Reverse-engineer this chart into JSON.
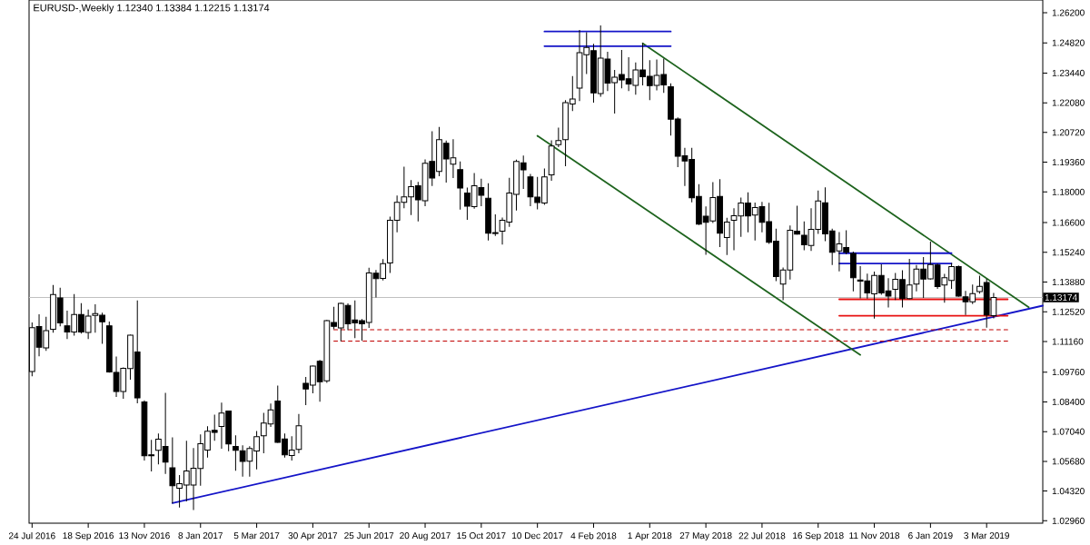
{
  "chart_data": {
    "type": "candlestick",
    "title": "EURUSD-,Weekly 1.12340 1.13384 1.12215 1.13174",
    "x": [
      "2016-07-24",
      "2016-07-31",
      "2016-08-07",
      "2016-08-14",
      "2016-08-21",
      "2016-08-28",
      "2016-09-04",
      "2016-09-11",
      "2016-09-18",
      "2016-09-25",
      "2016-10-02",
      "2016-10-09",
      "2016-10-16",
      "2016-10-23",
      "2016-10-30",
      "2016-11-06",
      "2016-11-13",
      "2016-11-20",
      "2016-11-27",
      "2016-12-04",
      "2016-12-11",
      "2016-12-18",
      "2016-12-25",
      "2017-01-01",
      "2017-01-08",
      "2017-01-15",
      "2017-01-22",
      "2017-01-29",
      "2017-02-05",
      "2017-02-12",
      "2017-02-19",
      "2017-02-26",
      "2017-03-05",
      "2017-03-12",
      "2017-03-19",
      "2017-03-26",
      "2017-04-02",
      "2017-04-09",
      "2017-04-16",
      "2017-04-23",
      "2017-04-30",
      "2017-05-07",
      "2017-05-14",
      "2017-05-21",
      "2017-05-28",
      "2017-06-04",
      "2017-06-11",
      "2017-06-18",
      "2017-06-25",
      "2017-07-02",
      "2017-07-09",
      "2017-07-16",
      "2017-07-23",
      "2017-07-30",
      "2017-08-06",
      "2017-08-13",
      "2017-08-20",
      "2017-08-27",
      "2017-09-03",
      "2017-09-10",
      "2017-09-17",
      "2017-09-24",
      "2017-10-01",
      "2017-10-08",
      "2017-10-15",
      "2017-10-22",
      "2017-10-29",
      "2017-11-05",
      "2017-11-12",
      "2017-11-19",
      "2017-11-26",
      "2017-12-03",
      "2017-12-10",
      "2017-12-17",
      "2017-12-24",
      "2017-12-31",
      "2018-01-07",
      "2018-01-14",
      "2018-01-21",
      "2018-01-28",
      "2018-02-04",
      "2018-02-11",
      "2018-02-18",
      "2018-02-25",
      "2018-03-04",
      "2018-03-11",
      "2018-03-18",
      "2018-03-25",
      "2018-04-01",
      "2018-04-08",
      "2018-04-15",
      "2018-04-22",
      "2018-04-29",
      "2018-05-06",
      "2018-05-13",
      "2018-05-20",
      "2018-05-27",
      "2018-06-03",
      "2018-06-10",
      "2018-06-17",
      "2018-06-24",
      "2018-07-01",
      "2018-07-08",
      "2018-07-15",
      "2018-07-22",
      "2018-07-29",
      "2018-08-05",
      "2018-08-12",
      "2018-08-19",
      "2018-08-26",
      "2018-09-02",
      "2018-09-09",
      "2018-09-16",
      "2018-09-23",
      "2018-09-30",
      "2018-10-07",
      "2018-10-14",
      "2018-10-21",
      "2018-10-28",
      "2018-11-04",
      "2018-11-11",
      "2018-11-18",
      "2018-11-25",
      "2018-12-02",
      "2018-12-09",
      "2018-12-16",
      "2018-12-23",
      "2018-12-30",
      "2019-01-06",
      "2019-01-13",
      "2019-01-20",
      "2019-01-27",
      "2019-02-03",
      "2019-02-10",
      "2019-02-17",
      "2019-02-24",
      "2019-03-03",
      "2019-03-10"
    ],
    "ohlc": [
      [
        1.0979,
        1.1203,
        1.0957,
        1.1179
      ],
      [
        1.1184,
        1.1241,
        1.1048,
        1.109
      ],
      [
        1.1087,
        1.1229,
        1.1073,
        1.1166
      ],
      [
        1.1172,
        1.1374,
        1.1156,
        1.1331
      ],
      [
        1.1315,
        1.1362,
        1.1185,
        1.1201
      ],
      [
        1.1188,
        1.1257,
        1.1127,
        1.116
      ],
      [
        1.116,
        1.1333,
        1.1143,
        1.124
      ],
      [
        1.124,
        1.1291,
        1.1152,
        1.116
      ],
      [
        1.1157,
        1.1262,
        1.1127,
        1.1232
      ],
      [
        1.1235,
        1.1286,
        1.1156,
        1.1244
      ],
      [
        1.1236,
        1.1248,
        1.1106,
        1.1206
      ],
      [
        1.1188,
        1.1207,
        1.0974,
        1.0977
      ],
      [
        1.0975,
        1.1047,
        1.0862,
        1.0887
      ],
      [
        1.0887,
        1.0997,
        1.0854,
        1.0993
      ],
      [
        1.0992,
        1.1147,
        1.0941,
        1.1145
      ],
      [
        1.1068,
        1.1304,
        1.0833,
        1.0858
      ],
      [
        1.084,
        1.0847,
        1.0572,
        1.0593
      ],
      [
        1.0598,
        1.0666,
        1.0522,
        1.0593
      ],
      [
        1.0618,
        1.0695,
        1.0554,
        1.0669
      ],
      [
        1.0636,
        1.0881,
        1.051,
        1.0564
      ],
      [
        1.0538,
        1.0678,
        1.0375,
        1.0456
      ],
      [
        1.0445,
        1.0505,
        1.0357,
        1.0466
      ],
      [
        1.046,
        1.0662,
        1.0385,
        1.0524
      ],
      [
        1.046,
        1.0629,
        1.0345,
        1.0536
      ],
      [
        1.0535,
        1.0691,
        1.0456,
        1.0648
      ],
      [
        1.0619,
        1.0728,
        1.0585,
        1.0706
      ],
      [
        1.071,
        1.0781,
        1.0662,
        1.07
      ],
      [
        1.0727,
        1.0836,
        1.0626,
        1.0789
      ],
      [
        1.0798,
        1.08,
        1.0614,
        1.0647
      ],
      [
        1.0636,
        1.0687,
        1.0525,
        1.0618
      ],
      [
        1.0616,
        1.0641,
        1.0498,
        1.0568
      ],
      [
        1.0569,
        1.0637,
        1.0498,
        1.0627
      ],
      [
        1.0615,
        1.0707,
        1.0531,
        1.0681
      ],
      [
        1.0685,
        1.079,
        1.0605,
        1.0743
      ],
      [
        1.0739,
        1.0832,
        1.0725,
        1.0803
      ],
      [
        1.0844,
        1.0914,
        1.0653,
        1.0655
      ],
      [
        1.067,
        1.0695,
        1.0585,
        1.0598
      ],
      [
        1.0594,
        1.0683,
        1.0572,
        1.0619
      ],
      [
        1.0623,
        1.0785,
        1.0605,
        1.0731
      ],
      [
        1.0925,
        1.0954,
        1.0825,
        1.0899
      ],
      [
        1.0917,
        1.1006,
        1.0879,
        1.1004
      ],
      [
        1.1026,
        1.1032,
        1.0841,
        1.0932
      ],
      [
        1.0936,
        1.1215,
        1.0927,
        1.1211
      ],
      [
        1.1203,
        1.1275,
        1.1172,
        1.1185
      ],
      [
        1.1178,
        1.1293,
        1.1117,
        1.129
      ],
      [
        1.1281,
        1.129,
        1.1168,
        1.1197
      ],
      [
        1.1215,
        1.1304,
        1.1131,
        1.1201
      ],
      [
        1.1211,
        1.1219,
        1.112,
        1.1197
      ],
      [
        1.1203,
        1.1453,
        1.1178,
        1.143
      ],
      [
        1.1428,
        1.1443,
        1.1317,
        1.1404
      ],
      [
        1.1405,
        1.1493,
        1.1395,
        1.1472
      ],
      [
        1.1475,
        1.1687,
        1.143,
        1.1671
      ],
      [
        1.1671,
        1.1784,
        1.1615,
        1.1753
      ],
      [
        1.1753,
        1.1916,
        1.1726,
        1.1778
      ],
      [
        1.1778,
        1.1854,
        1.1694,
        1.1824
      ],
      [
        1.1828,
        1.1846,
        1.1665,
        1.1764
      ],
      [
        1.176,
        1.1949,
        1.1735,
        1.1931
      ],
      [
        1.194,
        1.2078,
        1.1827,
        1.1864
      ],
      [
        1.1894,
        1.2097,
        1.1872,
        1.2039
      ],
      [
        1.2023,
        1.2035,
        1.1843,
        1.1951
      ],
      [
        1.1927,
        1.2041,
        1.1864,
        1.1956
      ],
      [
        1.1902,
        1.194,
        1.1719,
        1.1818
      ],
      [
        1.1795,
        1.182,
        1.1673,
        1.1735
      ],
      [
        1.1733,
        1.1887,
        1.1723,
        1.1828
      ],
      [
        1.182,
        1.1861,
        1.1735,
        1.1785
      ],
      [
        1.1771,
        1.184,
        1.1578,
        1.1611
      ],
      [
        1.1614,
        1.1697,
        1.1599,
        1.161
      ],
      [
        1.1621,
        1.1683,
        1.1559,
        1.1671
      ],
      [
        1.1662,
        1.1865,
        1.164,
        1.1795
      ],
      [
        1.1789,
        1.1948,
        1.1715,
        1.194
      ],
      [
        1.1933,
        1.1966,
        1.1814,
        1.1901
      ],
      [
        1.1869,
        1.1882,
        1.1735,
        1.1777
      ],
      [
        1.1776,
        1.1869,
        1.172,
        1.1752
      ],
      [
        1.1749,
        1.1907,
        1.1741,
        1.1869
      ],
      [
        1.1878,
        1.2036,
        1.1851,
        1.201
      ],
      [
        1.2016,
        1.2094,
        1.2005,
        1.2035
      ],
      [
        1.2039,
        1.222,
        1.1918,
        1.2209
      ],
      [
        1.2202,
        1.233,
        1.217,
        1.2225
      ],
      [
        1.2275,
        1.2541,
        1.2216,
        1.2437
      ],
      [
        1.2428,
        1.253,
        1.2339,
        1.2461
      ],
      [
        1.2446,
        1.2478,
        1.2209,
        1.2253
      ],
      [
        1.225,
        1.2562,
        1.2236,
        1.2412
      ],
      [
        1.2408,
        1.2441,
        1.2261,
        1.2298
      ],
      [
        1.23,
        1.2358,
        1.2159,
        1.2325
      ],
      [
        1.2337,
        1.2449,
        1.2274,
        1.2312
      ],
      [
        1.2318,
        1.2416,
        1.2261,
        1.2294
      ],
      [
        1.2287,
        1.2392,
        1.2245,
        1.2358
      ],
      [
        1.2358,
        1.2481,
        1.2287,
        1.2327
      ],
      [
        1.2329,
        1.2403,
        1.222,
        1.2286
      ],
      [
        1.2287,
        1.2406,
        1.2265,
        1.2333
      ],
      [
        1.2337,
        1.241,
        1.2253,
        1.229
      ],
      [
        1.2281,
        1.2297,
        1.2058,
        1.2133
      ],
      [
        1.2134,
        1.2141,
        1.1914,
        1.1963
      ],
      [
        1.1965,
        1.2002,
        1.1827,
        1.1942
      ],
      [
        1.1949,
        1.2002,
        1.1753,
        1.1773
      ],
      [
        1.178,
        1.1836,
        1.1649,
        1.1653
      ],
      [
        1.1689,
        1.1734,
        1.1513,
        1.1661
      ],
      [
        1.1667,
        1.1845,
        1.1658,
        1.1774
      ],
      [
        1.178,
        1.1858,
        1.1548,
        1.1611
      ],
      [
        1.1592,
        1.1682,
        1.1512,
        1.1662
      ],
      [
        1.1671,
        1.1726,
        1.1533,
        1.1691
      ],
      [
        1.169,
        1.1774,
        1.1595,
        1.1749
      ],
      [
        1.1749,
        1.1798,
        1.1615,
        1.169
      ],
      [
        1.1694,
        1.1752,
        1.1578,
        1.1729
      ],
      [
        1.1733,
        1.1755,
        1.1615,
        1.1661
      ],
      [
        1.1664,
        1.1751,
        1.1562,
        1.157
      ],
      [
        1.1575,
        1.1632,
        1.1392,
        1.1413
      ],
      [
        1.1379,
        1.1454,
        1.1305,
        1.1443
      ],
      [
        1.1443,
        1.1647,
        1.1399,
        1.1625
      ],
      [
        1.1621,
        1.1737,
        1.1605,
        1.1607
      ],
      [
        1.1602,
        1.1665,
        1.1533,
        1.1558
      ],
      [
        1.1555,
        1.1726,
        1.153,
        1.1629
      ],
      [
        1.1629,
        1.1807,
        1.1608,
        1.1759
      ],
      [
        1.1751,
        1.1821,
        1.1575,
        1.1608
      ],
      [
        1.1622,
        1.1632,
        1.1466,
        1.1524
      ],
      [
        1.153,
        1.1617,
        1.1437,
        1.1563
      ],
      [
        1.1546,
        1.1625,
        1.1515,
        1.1524
      ],
      [
        1.1519,
        1.1527,
        1.1345,
        1.1408
      ],
      [
        1.1397,
        1.1461,
        1.1313,
        1.1392
      ],
      [
        1.1393,
        1.1426,
        1.1312,
        1.1338
      ],
      [
        1.1334,
        1.1436,
        1.1221,
        1.1418
      ],
      [
        1.1418,
        1.1469,
        1.133,
        1.1338
      ],
      [
        1.1348,
        1.1406,
        1.1272,
        1.1324
      ],
      [
        1.1355,
        1.143,
        1.1306,
        1.14
      ],
      [
        1.1399,
        1.1442,
        1.1272,
        1.1312
      ],
      [
        1.1312,
        1.1494,
        1.1309,
        1.1374
      ],
      [
        1.1379,
        1.1466,
        1.1345,
        1.1447
      ],
      [
        1.1447,
        1.1502,
        1.1315,
        1.1402
      ],
      [
        1.1403,
        1.1573,
        1.1399,
        1.1468
      ],
      [
        1.1466,
        1.1472,
        1.1357,
        1.1367
      ],
      [
        1.1374,
        1.1425,
        1.1294,
        1.1408
      ],
      [
        1.1395,
        1.1475,
        1.1357,
        1.1459
      ],
      [
        1.1459,
        1.1464,
        1.1321,
        1.1324
      ],
      [
        1.132,
        1.1348,
        1.1237,
        1.1298
      ],
      [
        1.1298,
        1.1377,
        1.1287,
        1.1335
      ],
      [
        1.1344,
        1.1417,
        1.1335,
        1.1368
      ],
      [
        1.1386,
        1.1403,
        1.1179,
        1.1237
      ],
      [
        1.1234,
        1.13384,
        1.12215,
        1.13174
      ]
    ],
    "xlim": [
      "2016-07-21",
      "2019-04-28"
    ],
    "ylim": [
      1.0285,
      1.2678
    ],
    "xticks": [
      {
        "value": "2016-07-24",
        "label": "24 Jul 2016"
      },
      {
        "value": "2016-09-18",
        "label": "18 Sep 2016"
      },
      {
        "value": "2016-11-13",
        "label": "13 Nov 2016"
      },
      {
        "value": "2017-01-08",
        "label": "8 Jan 2017"
      },
      {
        "value": "2017-03-05",
        "label": "5 Mar 2017"
      },
      {
        "value": "2017-04-30",
        "label": "30 Apr 2017"
      },
      {
        "value": "2017-06-25",
        "label": "25 Jun 2017"
      },
      {
        "value": "2017-08-20",
        "label": "20 Aug 2017"
      },
      {
        "value": "2017-10-15",
        "label": "15 Oct 2017"
      },
      {
        "value": "2017-12-10",
        "label": "10 Dec 2017"
      },
      {
        "value": "2018-02-04",
        "label": "4 Feb 2018"
      },
      {
        "value": "2018-04-01",
        "label": "1 Apr 2018"
      },
      {
        "value": "2018-05-27",
        "label": "27 May 2018"
      },
      {
        "value": "2018-07-22",
        "label": "22 Jul 2018"
      },
      {
        "value": "2018-09-16",
        "label": "16 Sep 2018"
      },
      {
        "value": "2018-11-11",
        "label": "11 Nov 2018"
      },
      {
        "value": "2019-01-06",
        "label": "6 Jan 2019"
      },
      {
        "value": "2019-03-03",
        "label": "3 Mar 2019"
      }
    ],
    "yticks": [
      {
        "value": 1.262,
        "label": "1.26200"
      },
      {
        "value": 1.2482,
        "label": "1.24820"
      },
      {
        "value": 1.2344,
        "label": "1.23440"
      },
      {
        "value": 1.2208,
        "label": "1.22080"
      },
      {
        "value": 1.2072,
        "label": "1.20720"
      },
      {
        "value": 1.1936,
        "label": "1.19360"
      },
      {
        "value": 1.18,
        "label": "1.18000"
      },
      {
        "value": 1.166,
        "label": "1.16600"
      },
      {
        "value": 1.1524,
        "label": "1.15240"
      },
      {
        "value": 1.1388,
        "label": "1.13880"
      },
      {
        "value": 1.1252,
        "label": "1.12520"
      },
      {
        "value": 1.1116,
        "label": "1.11160"
      },
      {
        "value": 1.0976,
        "label": "1.09760"
      },
      {
        "value": 1.084,
        "label": "1.08400"
      },
      {
        "value": 1.0704,
        "label": "1.07040"
      },
      {
        "value": 1.0568,
        "label": "1.05680"
      },
      {
        "value": 1.0432,
        "label": "1.04320"
      },
      {
        "value": 1.0296,
        "label": "1.02960"
      }
    ],
    "ref_lines": [
      {
        "axis": "y",
        "value": 1.13174,
        "label": "1.13174",
        "color": "#c0c0c0"
      }
    ],
    "series": [
      {
        "type": "line",
        "x": [
          "2016-12-11",
          "2019-04-28"
        ],
        "values": [
          1.0377,
          1.128
        ],
        "color": "#1414c8",
        "line_style": "solid"
      },
      {
        "type": "line",
        "x": [
          "2018-03-25",
          "2019-04-14"
        ],
        "values": [
          1.248,
          1.1273
        ],
        "color": "#1e641e",
        "line_style": "solid"
      },
      {
        "type": "line",
        "x": [
          "2017-12-10",
          "2018-10-28"
        ],
        "values": [
          1.2057,
          1.1055
        ],
        "color": "#1e641e",
        "line_style": "solid"
      },
      {
        "type": "line",
        "x": [
          "2017-12-17",
          "2018-04-22"
        ],
        "values": [
          1.2534,
          1.2534
        ],
        "color": "#1414c8",
        "line_style": "solid"
      },
      {
        "type": "line",
        "x": [
          "2017-12-17",
          "2018-04-22"
        ],
        "values": [
          1.2467,
          1.2467
        ],
        "color": "#1414c8",
        "line_style": "solid"
      },
      {
        "type": "line",
        "x": [
          "2018-10-07",
          "2019-01-27"
        ],
        "values": [
          1.152,
          1.152
        ],
        "color": "#1414c8",
        "line_style": "solid"
      },
      {
        "type": "line",
        "x": [
          "2018-10-07",
          "2019-01-27"
        ],
        "values": [
          1.1473,
          1.1473
        ],
        "color": "#1414c8",
        "line_style": "solid"
      },
      {
        "type": "line",
        "x": [
          "2018-10-07",
          "2019-03-24"
        ],
        "values": [
          1.1309,
          1.1309
        ],
        "color": "#e81010",
        "line_style": "solid"
      },
      {
        "type": "line",
        "x": [
          "2018-10-07",
          "2019-03-24"
        ],
        "values": [
          1.1234,
          1.1234
        ],
        "color": "#e81010",
        "line_style": "solid"
      },
      {
        "type": "line",
        "x": [
          "2017-05-21",
          "2019-03-24"
        ],
        "values": [
          1.117,
          1.117
        ],
        "color": "#c00000",
        "line_style": "dashed"
      },
      {
        "type": "line",
        "x": [
          "2017-05-21",
          "2019-03-24"
        ],
        "values": [
          1.1118,
          1.1118
        ],
        "color": "#c00000",
        "line_style": "dashed"
      }
    ]
  }
}
